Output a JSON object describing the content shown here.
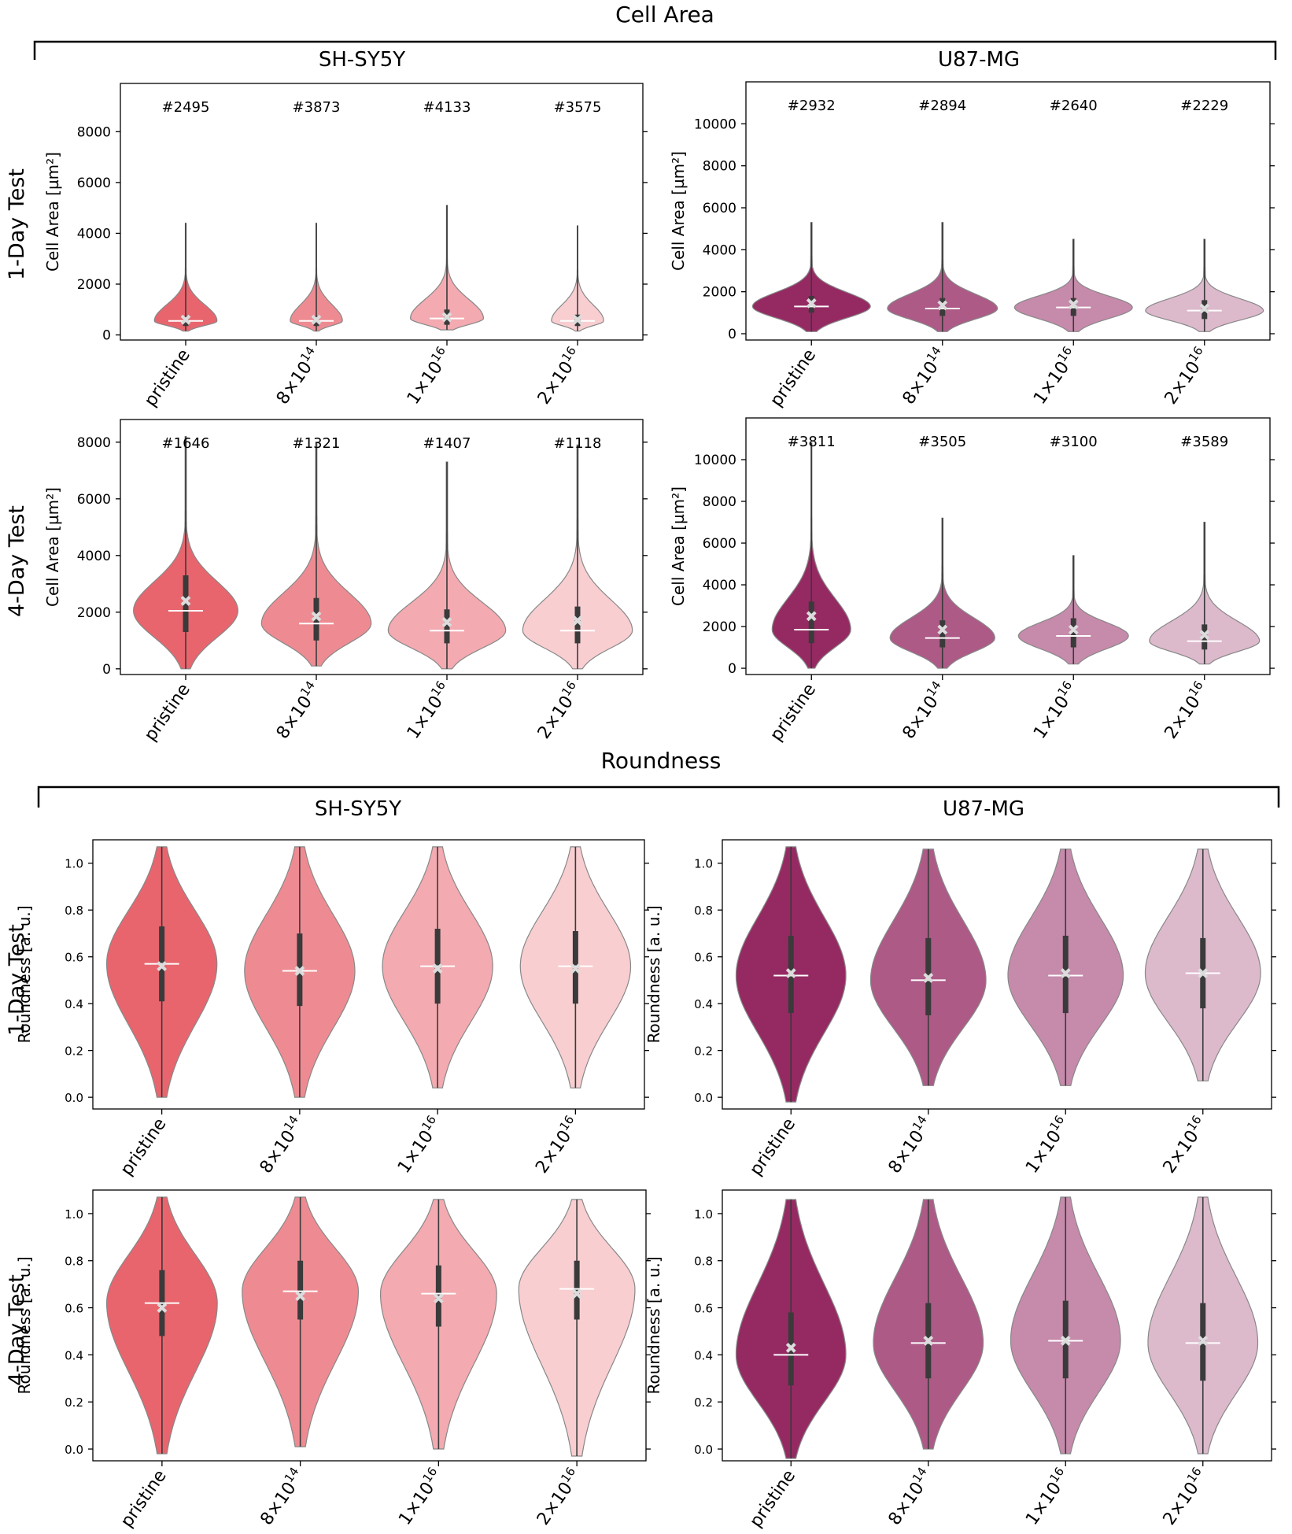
{
  "figure": {
    "sections": [
      {
        "title": "Cell Area",
        "groups": [
          "SH-SY5Y",
          "U87-MG"
        ],
        "rows": [
          "1-Day Test",
          "4-Day Test"
        ]
      },
      {
        "title": "Roundness",
        "groups": [
          "SH-SY5Y",
          "U87-MG"
        ],
        "rows": [
          "1-Day Test",
          "4-Day Test"
        ]
      }
    ]
  },
  "chart_data": [
    {
      "type": "violin",
      "section": "Cell Area",
      "cell_line": "SH-SY5Y",
      "test": "1-Day Test",
      "ylabel": "Cell Area [µm²]",
      "ylim": [
        -200,
        9900
      ],
      "yticks": [
        0,
        2000,
        4000,
        6000,
        8000
      ],
      "categories": [
        "pristine",
        "8×10^14",
        "1×10^16",
        "2×10^16"
      ],
      "counts": [
        "#2495",
        "#3873",
        "#4133",
        "#3575"
      ],
      "colors": [
        "#e8656e",
        "#ee8b92",
        "#f3aab0",
        "#f8ced1"
      ],
      "max": [
        4400,
        4400,
        5100,
        4300
      ],
      "min": [
        150,
        150,
        200,
        150
      ],
      "q1": [
        350,
        350,
        400,
        350
      ],
      "q3": [
        750,
        750,
        1000,
        800
      ],
      "median": [
        550,
        550,
        650,
        550
      ],
      "mean": [
        600,
        600,
        700,
        600
      ],
      "width_scale": [
        0.24,
        0.2,
        0.28,
        0.2
      ]
    },
    {
      "type": "violin",
      "section": "Cell Area",
      "cell_line": "U87-MG",
      "test": "1-Day Test",
      "ylabel": "Cell Area [µm²]",
      "ylim": [
        -300,
        12000
      ],
      "yticks": [
        0,
        2000,
        4000,
        6000,
        8000,
        10000
      ],
      "categories": [
        "pristine",
        "8×10^14",
        "1×10^16",
        "2×10^16"
      ],
      "counts": [
        "#2932",
        "#2894",
        "#2640",
        "#2229"
      ],
      "colors": [
        "#952a63",
        "#ad5a87",
        "#c68aab",
        "#ddb9cc"
      ],
      "max": [
        5300,
        5300,
        4500,
        4500
      ],
      "min": [
        100,
        100,
        100,
        100
      ],
      "q1": [
        1000,
        850,
        850,
        700
      ],
      "q3": [
        1800,
        1700,
        1700,
        1600
      ],
      "median": [
        1300,
        1200,
        1250,
        1100
      ],
      "mean": [
        1450,
        1350,
        1400,
        1200
      ],
      "width_scale": [
        0.45,
        0.42,
        0.45,
        0.45
      ]
    },
    {
      "type": "violin",
      "section": "Cell Area",
      "cell_line": "SH-SY5Y",
      "test": "4-Day Test",
      "ylabel": "Cell Area [µm²]",
      "ylim": [
        -200,
        8800
      ],
      "yticks": [
        0,
        2000,
        4000,
        6000,
        8000
      ],
      "categories": [
        "pristine",
        "8×10^14",
        "1×10^16",
        "2×10^16"
      ],
      "counts": [
        "#1646",
        "#1321",
        "#1407",
        "#1118"
      ],
      "colors": [
        "#e8656e",
        "#ee8b92",
        "#f3aab0",
        "#f8ced1"
      ],
      "max": [
        8200,
        8000,
        7300,
        7900
      ],
      "min": [
        0,
        100,
        0,
        0
      ],
      "q1": [
        1300,
        1000,
        900,
        900
      ],
      "q3": [
        3300,
        2500,
        2100,
        2200
      ],
      "median": [
        2050,
        1600,
        1350,
        1350
      ],
      "mean": [
        2400,
        1850,
        1650,
        1700
      ],
      "width_scale": [
        0.4,
        0.42,
        0.45,
        0.42
      ]
    },
    {
      "type": "violin",
      "section": "Cell Area",
      "cell_line": "U87-MG",
      "test": "4-Day Test",
      "ylabel": "Cell Area [µm²]",
      "ylim": [
        -300,
        12000
      ],
      "yticks": [
        0,
        2000,
        4000,
        6000,
        8000,
        10000
      ],
      "categories": [
        "pristine",
        "8×10^14",
        "1×10^16",
        "2×10^16"
      ],
      "counts": [
        "#3811",
        "#3505",
        "#3100",
        "#3589"
      ],
      "colors": [
        "#952a63",
        "#ad5a87",
        "#c68aab",
        "#ddb9cc"
      ],
      "max": [
        10800,
        7200,
        5400,
        7000
      ],
      "min": [
        0,
        0,
        200,
        200
      ],
      "q1": [
        1200,
        1000,
        1000,
        900
      ],
      "q3": [
        3200,
        2300,
        2400,
        2100
      ],
      "median": [
        1850,
        1450,
        1550,
        1300
      ],
      "mean": [
        2500,
        1850,
        1850,
        1600
      ],
      "width_scale": [
        0.3,
        0.4,
        0.42,
        0.42
      ]
    },
    {
      "type": "violin",
      "section": "Roundness",
      "cell_line": "SH-SY5Y",
      "test": "1-Day Test",
      "ylabel": "Roundness  [a. u.]",
      "ylim": [
        -0.05,
        1.1
      ],
      "yticks": [
        0.0,
        0.2,
        0.4,
        0.6,
        0.8,
        1.0
      ],
      "categories": [
        "pristine",
        "8×10^14",
        "1×10^16",
        "2×10^16"
      ],
      "counts": [],
      "colors": [
        "#e8656e",
        "#ee8b92",
        "#f3aab0",
        "#f8ced1"
      ],
      "max": [
        1.07,
        1.07,
        1.07,
        1.07
      ],
      "min": [
        0.0,
        0.0,
        0.04,
        0.04
      ],
      "q1": [
        0.41,
        0.39,
        0.4,
        0.4
      ],
      "q3": [
        0.73,
        0.7,
        0.72,
        0.71
      ],
      "median": [
        0.57,
        0.54,
        0.56,
        0.56
      ],
      "mean": [
        0.56,
        0.54,
        0.55,
        0.55
      ],
      "width_scale": [
        0.4,
        0.4,
        0.4,
        0.4
      ]
    },
    {
      "type": "violin",
      "section": "Roundness",
      "cell_line": "U87-MG",
      "test": "1-Day Test",
      "ylabel": "Roundness  [a. u.]",
      "ylim": [
        -0.05,
        1.1
      ],
      "yticks": [
        0.0,
        0.2,
        0.4,
        0.6,
        0.8,
        1.0
      ],
      "categories": [
        "pristine",
        "8×10^14",
        "1×10^16",
        "2×10^16"
      ],
      "counts": [],
      "colors": [
        "#952a63",
        "#ad5a87",
        "#c68aab",
        "#ddb9cc"
      ],
      "max": [
        1.07,
        1.06,
        1.06,
        1.06
      ],
      "min": [
        -0.02,
        0.05,
        0.05,
        0.07
      ],
      "q1": [
        0.36,
        0.35,
        0.36,
        0.38
      ],
      "q3": [
        0.69,
        0.68,
        0.69,
        0.68
      ],
      "median": [
        0.52,
        0.5,
        0.52,
        0.53
      ],
      "mean": [
        0.53,
        0.51,
        0.53,
        0.53
      ],
      "width_scale": [
        0.4,
        0.42,
        0.42,
        0.42
      ]
    },
    {
      "type": "violin",
      "section": "Roundness",
      "cell_line": "SH-SY5Y",
      "test": "4-Day Test",
      "ylabel": "Roundness [a. u.]",
      "ylim": [
        -0.05,
        1.1
      ],
      "yticks": [
        0.0,
        0.2,
        0.4,
        0.6,
        0.8,
        1.0
      ],
      "categories": [
        "pristine",
        "8×10^14",
        "1×10^16",
        "2×10^16"
      ],
      "counts": [],
      "colors": [
        "#e8656e",
        "#ee8b92",
        "#f3aab0",
        "#f8ced1"
      ],
      "max": [
        1.07,
        1.07,
        1.06,
        1.06
      ],
      "min": [
        -0.02,
        0.01,
        0.0,
        -0.03
      ],
      "q1": [
        0.48,
        0.55,
        0.52,
        0.55
      ],
      "q3": [
        0.76,
        0.8,
        0.78,
        0.8
      ],
      "median": [
        0.62,
        0.67,
        0.66,
        0.68
      ],
      "mean": [
        0.6,
        0.65,
        0.64,
        0.66
      ],
      "width_scale": [
        0.4,
        0.42,
        0.42,
        0.42
      ]
    },
    {
      "type": "violin",
      "section": "Roundness",
      "cell_line": "U87-MG",
      "test": "4-Day Test",
      "ylabel": "Roundness [a. u.]",
      "ylim": [
        -0.05,
        1.1
      ],
      "yticks": [
        0.0,
        0.2,
        0.4,
        0.6,
        0.8,
        1.0
      ],
      "categories": [
        "pristine",
        "8×10^14",
        "1×10^16",
        "2×10^16"
      ],
      "counts": [],
      "colors": [
        "#952a63",
        "#ad5a87",
        "#c68aab",
        "#ddb9cc"
      ],
      "max": [
        1.06,
        1.06,
        1.07,
        1.07
      ],
      "min": [
        -0.04,
        0.0,
        -0.02,
        -0.02
      ],
      "q1": [
        0.27,
        0.3,
        0.3,
        0.29
      ],
      "q3": [
        0.58,
        0.62,
        0.63,
        0.62
      ],
      "median": [
        0.4,
        0.45,
        0.46,
        0.45
      ],
      "mean": [
        0.43,
        0.46,
        0.46,
        0.46
      ],
      "width_scale": [
        0.4,
        0.4,
        0.4,
        0.4
      ]
    }
  ]
}
